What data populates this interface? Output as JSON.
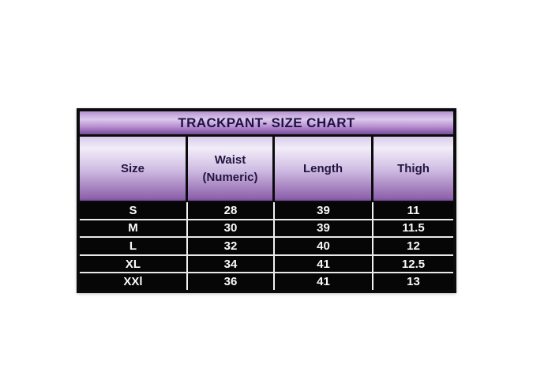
{
  "title": "TRACKPANT- SIZE CHART",
  "chart_data": {
    "type": "table",
    "title": "TRACKPANT- SIZE CHART",
    "columns": [
      "Size",
      "Waist (Numeric)",
      "Length",
      "Thigh"
    ],
    "column_display": [
      "Size",
      "Waist\n(Numeric)",
      "Length",
      "Thigh"
    ],
    "rows": [
      [
        "S",
        "28",
        "39",
        "11"
      ],
      [
        "M",
        "30",
        "39",
        "11.5"
      ],
      [
        "L",
        "32",
        "40",
        "12"
      ],
      [
        "XL",
        "34",
        "41",
        "12.5"
      ],
      [
        "XXl",
        "36",
        "41",
        "13"
      ]
    ]
  },
  "colors": {
    "page_background": "#ffffff",
    "table_border": "#0b0b0d",
    "header_gradient_light": "#f2edf8",
    "header_gradient_dark": "#7a4d9c",
    "header_text": "#221540",
    "data_background": "#060606",
    "data_text": "#fafafa",
    "row_divider": "#e9e9e9"
  }
}
